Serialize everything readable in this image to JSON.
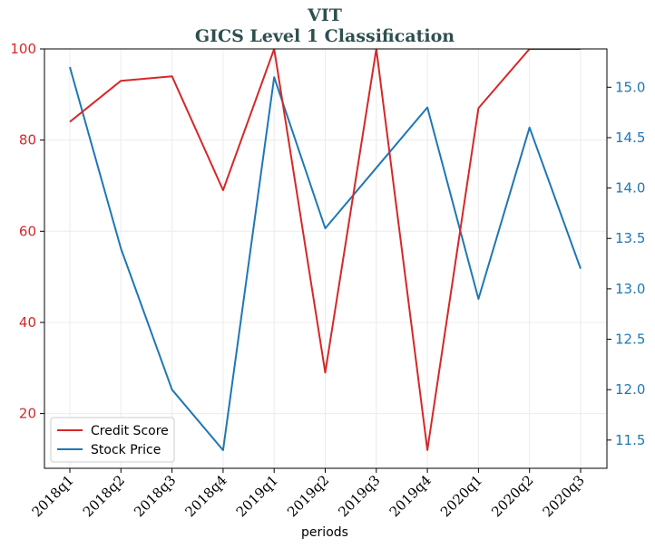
{
  "chart_data": {
    "type": "line",
    "title": "VIT",
    "subtitle": "GICS Level 1 Classification",
    "xlabel": "periods",
    "ylabel": "",
    "ylabel_right": "",
    "categories": [
      "2018q1",
      "2018q2",
      "2018q3",
      "2018q4",
      "2019q1",
      "2019q2",
      "2019q3",
      "2019q4",
      "2020q1",
      "2020q2",
      "2020q3"
    ],
    "series": [
      {
        "name": "Credit Score",
        "axis": "left",
        "color": "#d62728",
        "values": [
          84,
          93,
          94,
          69,
          100,
          29,
          100,
          12,
          87,
          100,
          100
        ]
      },
      {
        "name": "Stock Price",
        "axis": "right",
        "color": "#1f77b4",
        "values": [
          15.2,
          13.4,
          12.0,
          11.4,
          15.1,
          13.6,
          14.2,
          14.8,
          12.9,
          14.6,
          13.2
        ]
      }
    ],
    "ylim_left": [
      8,
      100
    ],
    "ylim_right": [
      11.22,
      15.38
    ],
    "yticks_left": [
      "20",
      "40",
      "60",
      "80",
      "100"
    ],
    "yticks_right": [
      "11.5",
      "12.0",
      "12.5",
      "13.0",
      "13.5",
      "14.0",
      "14.5",
      "15.0"
    ],
    "grid": true,
    "legend_position": "lower-left"
  }
}
